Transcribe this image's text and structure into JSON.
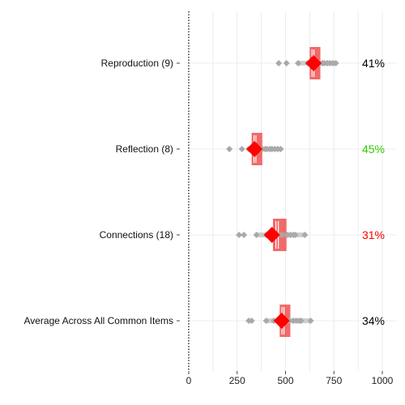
{
  "chart_data": {
    "type": "dot-range",
    "xlim": [
      0,
      1000
    ],
    "x_ticks": [
      0,
      250,
      500,
      750,
      1000
    ],
    "x_tick_labels": [
      "0",
      "250",
      "500",
      "750",
      "1000"
    ],
    "grid": true,
    "colors": {
      "box": "#f06262",
      "mean": "#ff0000",
      "points": "#a9a9a9",
      "grid": "#ececec",
      "axis": "#000000",
      "pct_default": "#000000",
      "pct_green": "#33cc00",
      "pct_red": "#ff0000"
    },
    "rows": [
      {
        "label": "Reproduction (9)",
        "q1": 625,
        "q3": 680,
        "mean": 645,
        "points": [
          465,
          505,
          565,
          615,
          640,
          660,
          675,
          690,
          700,
          715,
          730,
          745,
          760
        ],
        "pct": "41%",
        "pct_color": "default"
      },
      {
        "label": "Reflection (8)",
        "q1": 325,
        "q3": 380,
        "mean": 340,
        "points": [
          210,
          275,
          310,
          325,
          340,
          360,
          380,
          395,
          405,
          420,
          430,
          445,
          460,
          475
        ],
        "pct": "45%",
        "pct_color": "green"
      },
      {
        "label": "Connections (18)",
        "q1": 435,
        "q3": 505,
        "mean": 430,
        "points": [
          260,
          285,
          350,
          400,
          440,
          480,
          510,
          525,
          540,
          550,
          600
        ],
        "pct": "31%",
        "pct_color": "red"
      },
      {
        "label": "Average Across All Common Items",
        "q1": 470,
        "q3": 525,
        "mean": 480,
        "points": [
          310,
          325,
          400,
          440,
          470,
          500,
          520,
          540,
          555,
          570,
          580,
          630
        ],
        "pct": "34%",
        "pct_color": "default"
      }
    ]
  }
}
